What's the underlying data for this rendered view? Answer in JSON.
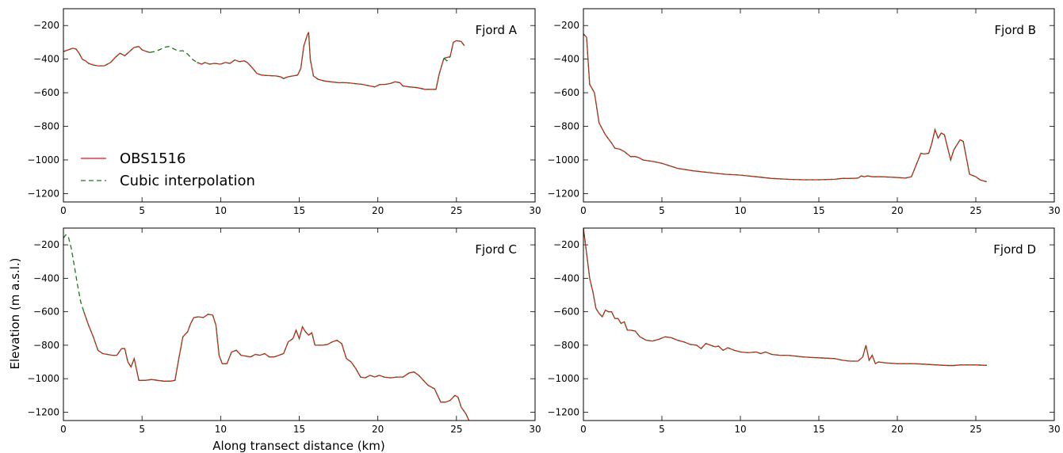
{
  "figure": {
    "xlabel": "Along transect distance (km)",
    "ylabel": "Elevation (m a.s.l.)",
    "legend": {
      "placement": "lower-left of Fjord A panel",
      "entries": [
        {
          "label": "OBS1516",
          "style": "solid",
          "color": "#e8141a"
        },
        {
          "label": "Cubic interpolation",
          "style": "dashed",
          "color": "#1a7a1a"
        }
      ]
    },
    "colors": {
      "observed": "#e8141a",
      "interpolated": "#1a7a1a"
    }
  },
  "chart_data": [
    {
      "type": "line",
      "title": "Fjord A",
      "xlim": [
        0,
        30
      ],
      "ylim": [
        -1250,
        -100
      ],
      "xticks": [
        0,
        5,
        10,
        15,
        20,
        25,
        30
      ],
      "yticks": [
        -200,
        -400,
        -600,
        -800,
        -1000,
        -1200
      ],
      "grid": false,
      "series": [
        {
          "name": "OBS1516",
          "segments": [
            {
              "x": [
                0,
                0.3,
                0.6,
                0.8,
                1.0,
                1.2,
                1.4,
                1.6,
                1.9,
                2.2,
                2.6,
                3.0,
                3.3,
                3.6,
                3.9,
                4.2,
                4.5,
                4.8,
                5.0,
                5.3,
                5.5
              ],
              "y": [
                -355,
                -345,
                -335,
                -340,
                -365,
                -400,
                -410,
                -425,
                -435,
                -440,
                -440,
                -420,
                -390,
                -365,
                -380,
                -355,
                -330,
                -325,
                -345,
                -355,
                -360
              ]
            },
            {
              "x": [
                8.5,
                8.8,
                9.0,
                9.3,
                9.6,
                10.0,
                10.3,
                10.6,
                10.9,
                11.2,
                11.5,
                11.7,
                12.0,
                12.3,
                12.6,
                13.0,
                13.5,
                13.8,
                14.0,
                14.3,
                14.6,
                14.9,
                15.1,
                15.3,
                15.5,
                15.6,
                15.7,
                15.9,
                16.2,
                16.6,
                17.0,
                17.5,
                18.0,
                19.0,
                19.5,
                19.8,
                20.1,
                20.5,
                20.8,
                21.1,
                21.4,
                21.6,
                22.0,
                22.5,
                23.0,
                23.3,
                23.7,
                23.9,
                24.2
              ],
              "y": [
                -420,
                -430,
                -420,
                -430,
                -425,
                -430,
                -420,
                -425,
                -405,
                -415,
                -410,
                -420,
                -450,
                -485,
                -495,
                -498,
                -500,
                -505,
                -515,
                -505,
                -500,
                -495,
                -455,
                -320,
                -260,
                -240,
                -400,
                -500,
                -520,
                -530,
                -535,
                -540,
                -540,
                -550,
                -560,
                -565,
                -552,
                -550,
                -545,
                -535,
                -540,
                -560,
                -565,
                -570,
                -580,
                -580,
                -580,
                -490,
                -395
              ]
            },
            {
              "x": [
                24.2,
                24.6,
                24.8,
                25.0,
                25.3,
                25.5
              ],
              "y": [
                -395,
                -385,
                -300,
                -290,
                -295,
                -320
              ]
            }
          ]
        },
        {
          "name": "Cubic interpolation",
          "segments": [
            {
              "x": [
                5.5,
                5.8,
                6.1,
                6.4,
                6.7,
                7.0,
                7.3,
                7.6,
                7.9,
                8.2,
                8.5
              ],
              "y": [
                -360,
                -355,
                -345,
                -330,
                -325,
                -338,
                -352,
                -350,
                -370,
                -400,
                -420
              ]
            },
            {
              "x": [
                24.2,
                24.4,
                24.6
              ],
              "y": [
                -395,
                -410,
                -385
              ]
            }
          ]
        }
      ]
    },
    {
      "type": "line",
      "title": "Fjord B",
      "xlim": [
        0,
        30
      ],
      "ylim": [
        -1250,
        -100
      ],
      "xticks": [
        0,
        5,
        10,
        15,
        20,
        25,
        30
      ],
      "yticks": [
        -200,
        -400,
        -600,
        -800,
        -1000,
        -1200
      ],
      "grid": false,
      "series": [
        {
          "name": "OBS1516",
          "segments": [
            {
              "x": [
                0,
                0.2,
                0.4,
                0.7,
                1.0,
                1.4,
                1.8,
                2.0,
                2.3,
                2.6,
                3.0,
                3.3,
                3.5,
                3.8,
                4.5,
                5.0,
                6.0,
                7.0,
                8.0,
                9.0,
                10.0,
                11.0,
                12.0,
                13.0,
                14.0,
                15.0,
                16.0,
                16.5,
                17.0,
                17.5,
                17.7,
                17.9,
                18.1,
                18.4,
                19.0,
                19.5,
                20.0,
                20.5,
                20.9,
                21.2,
                21.5,
                21.7,
                22.0,
                22.2,
                22.4,
                22.6,
                22.8,
                23.0,
                23.4,
                23.6,
                24.0,
                24.2,
                24.6,
                25.0,
                25.3,
                25.7
              ],
              "y": [
                -250,
                -270,
                -550,
                -600,
                -780,
                -850,
                -900,
                -930,
                -935,
                -950,
                -980,
                -980,
                -985,
                -1000,
                -1010,
                -1020,
                -1050,
                -1065,
                -1075,
                -1085,
                -1090,
                -1100,
                -1110,
                -1115,
                -1118,
                -1118,
                -1115,
                -1110,
                -1110,
                -1108,
                -1095,
                -1100,
                -1095,
                -1100,
                -1100,
                -1102,
                -1105,
                -1108,
                -1100,
                -1030,
                -960,
                -965,
                -960,
                -900,
                -820,
                -870,
                -840,
                -850,
                -1000,
                -940,
                -880,
                -890,
                -1085,
                -1100,
                -1120,
                -1130
              ]
            }
          ]
        },
        {
          "name": "Cubic interpolation",
          "segments": []
        }
      ]
    },
    {
      "type": "line",
      "title": "Fjord C",
      "xlim": [
        0,
        30
      ],
      "ylim": [
        -1250,
        -100
      ],
      "xticks": [
        0,
        5,
        10,
        15,
        20,
        25,
        30
      ],
      "yticks": [
        -200,
        -400,
        -600,
        -800,
        -1000,
        -1200
      ],
      "grid": false,
      "series": [
        {
          "name": "OBS1516",
          "segments": [
            {
              "x": [
                1.3,
                1.6,
                1.9,
                2.2,
                2.5,
                2.8,
                3.1,
                3.4,
                3.7,
                3.9,
                4.1,
                4.3,
                4.5,
                4.8,
                5.2,
                5.6,
                6.0,
                6.4,
                6.8,
                7.1,
                7.3,
                7.6,
                7.9,
                8.1,
                8.3,
                8.6,
                8.9,
                9.2,
                9.5,
                9.7,
                9.9,
                10.1,
                10.4,
                10.7,
                11.0,
                11.3,
                11.6,
                11.9,
                12.2,
                12.5,
                12.8,
                13.1,
                13.4,
                13.7,
                14.0,
                14.3,
                14.6,
                14.8,
                15.0,
                15.2,
                15.4,
                15.6,
                15.8,
                16.0,
                16.2,
                16.5,
                16.8,
                17.1,
                17.4,
                17.7,
                18.0,
                18.3,
                18.6,
                18.9,
                19.2,
                19.5,
                19.8,
                20.1,
                20.4,
                20.8,
                21.2,
                21.6,
                22.0,
                22.3,
                22.6,
                22.9,
                23.2,
                23.6,
                24.0,
                24.3,
                24.6,
                24.9,
                25.1,
                25.3,
                25.6,
                25.8
              ],
              "y": [
                -600,
                -680,
                -750,
                -830,
                -850,
                -855,
                -860,
                -860,
                -820,
                -820,
                -900,
                -930,
                -880,
                -1010,
                -1010,
                -1005,
                -1010,
                -1015,
                -1015,
                -1010,
                -900,
                -750,
                -720,
                -670,
                -635,
                -630,
                -635,
                -615,
                -620,
                -680,
                -860,
                -910,
                -910,
                -840,
                -830,
                -860,
                -865,
                -870,
                -855,
                -860,
                -850,
                -870,
                -870,
                -860,
                -850,
                -780,
                -760,
                -710,
                -760,
                -690,
                -720,
                -740,
                -725,
                -800,
                -800,
                -800,
                -795,
                -780,
                -770,
                -790,
                -880,
                -900,
                -940,
                -990,
                -995,
                -980,
                -990,
                -980,
                -990,
                -995,
                -990,
                -990,
                -965,
                -960,
                -980,
                -1010,
                -1040,
                -1060,
                -1140,
                -1140,
                -1130,
                -1100,
                -1110,
                -1170,
                -1210,
                -1250
              ]
            }
          ]
        },
        {
          "name": "Cubic interpolation",
          "segments": [
            {
              "x": [
                0,
                0.15,
                0.3,
                0.5,
                0.7,
                0.9,
                1.1,
                1.3
              ],
              "y": [
                -160,
                -140,
                -148,
                -220,
                -330,
                -440,
                -540,
                -600
              ]
            }
          ]
        }
      ]
    },
    {
      "type": "line",
      "title": "Fjord D",
      "xlim": [
        0,
        30
      ],
      "ylim": [
        -1250,
        -100
      ],
      "xticks": [
        0,
        5,
        10,
        15,
        20,
        25,
        30
      ],
      "yticks": [
        -200,
        -400,
        -600,
        -800,
        -1000,
        -1200
      ],
      "grid": false,
      "series": [
        {
          "name": "OBS1516",
          "segments": [
            {
              "x": [
                0,
                0.2,
                0.4,
                0.6,
                0.8,
                1.0,
                1.2,
                1.4,
                1.6,
                1.8,
                2.0,
                2.2,
                2.4,
                2.6,
                2.8,
                3.0,
                3.3,
                3.6,
                4.0,
                4.4,
                4.8,
                5.2,
                5.6,
                6.0,
                6.4,
                6.8,
                7.2,
                7.5,
                7.8,
                8.1,
                8.4,
                8.6,
                8.9,
                9.2,
                9.6,
                10.0,
                10.5,
                11.0,
                11.3,
                11.6,
                12.0,
                12.5,
                13.0,
                13.5,
                14.0,
                15.0,
                16.0,
                16.5,
                17.0,
                17.5,
                17.8,
                18.0,
                18.2,
                18.4,
                18.6,
                18.8,
                19.2,
                20.0,
                21.0,
                22.0,
                23.0,
                23.5,
                24.0,
                25.0,
                25.7
              ],
              "y": [
                -100,
                -250,
                -400,
                -480,
                -580,
                -610,
                -630,
                -590,
                -600,
                -600,
                -640,
                -640,
                -670,
                -660,
                -710,
                -710,
                -715,
                -750,
                -770,
                -775,
                -765,
                -750,
                -755,
                -770,
                -780,
                -795,
                -800,
                -820,
                -790,
                -800,
                -810,
                -805,
                -830,
                -815,
                -830,
                -840,
                -845,
                -840,
                -850,
                -840,
                -855,
                -860,
                -860,
                -865,
                -870,
                -875,
                -880,
                -890,
                -895,
                -895,
                -870,
                -800,
                -890,
                -860,
                -910,
                -900,
                -905,
                -910,
                -910,
                -915,
                -920,
                -922,
                -918,
                -918,
                -920
              ]
            }
          ]
        },
        {
          "name": "Cubic interpolation",
          "segments": []
        }
      ]
    }
  ]
}
